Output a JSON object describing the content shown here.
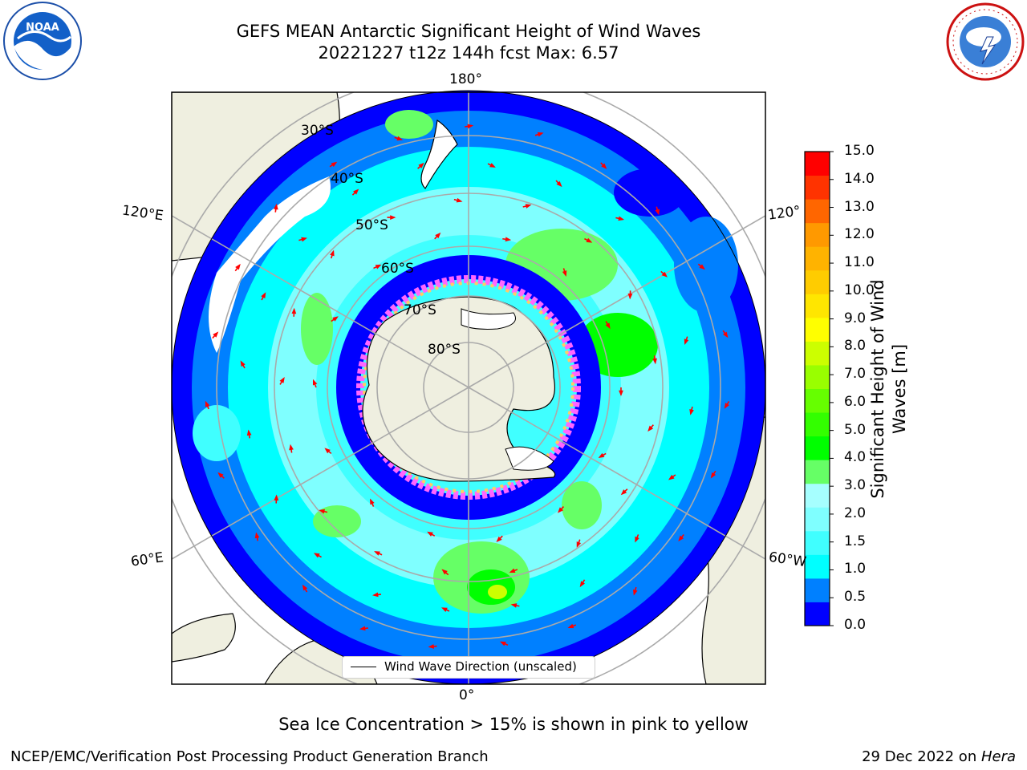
{
  "title_line1": "GEFS MEAN Antarctic Significant Height of Wind Waves",
  "title_line2": "20221227 t12z 144h fcst   Max: 6.57",
  "lat_labels": [
    "30°S",
    "40°S",
    "50°S",
    "60°S",
    "70°S",
    "80°S"
  ],
  "lon_labels": {
    "top": "180°",
    "bottom": "0°",
    "upper_left": "120°E",
    "lower_left": "60°E",
    "upper_right": "120°",
    "lower_right": "60°W"
  },
  "legend_text": "Wind Wave Direction (unscaled)",
  "colorbar": {
    "title_line1": "Significant Height of Wind",
    "title_line2": "Waves [m]",
    "ticks": [
      "15.0",
      "14.0",
      "13.0",
      "12.0",
      "11.0",
      "10.0",
      "9.0",
      "8.0",
      "7.0",
      "6.0",
      "5.0",
      "4.0",
      "3.0",
      "2.0",
      "1.5",
      "1.0",
      "0.5",
      "0.0"
    ],
    "colors_low_to_high": [
      "#0000ff",
      "#0080ff",
      "#00ffff",
      "#40ffff",
      "#7fffff",
      "#a6ffff",
      "#66ff66",
      "#00ff00",
      "#33ff00",
      "#66ff00",
      "#99ff00",
      "#ccff00",
      "#ffff00",
      "#ffe600",
      "#ffcc00",
      "#ffb300",
      "#ff9900",
      "#ff6600",
      "#ff3300",
      "#ff0000"
    ]
  },
  "sea_ice_note": "Sea Ice Concentration > 15% is shown in pink to yellow",
  "footer_left": "NCEP/EMC/Verification Post Processing Product Generation Branch",
  "footer_right_prefix": "29 Dec 2022 on ",
  "footer_right_host": "Hera",
  "logos": {
    "noaa": "NOAA",
    "nws_ring": "NATIONAL WEATHER SERVICE"
  },
  "colors": {
    "land": "#efefe0",
    "ocean_low": "#0000ff",
    "arrow": "#ff0000",
    "grid": "#aaaaaa"
  }
}
